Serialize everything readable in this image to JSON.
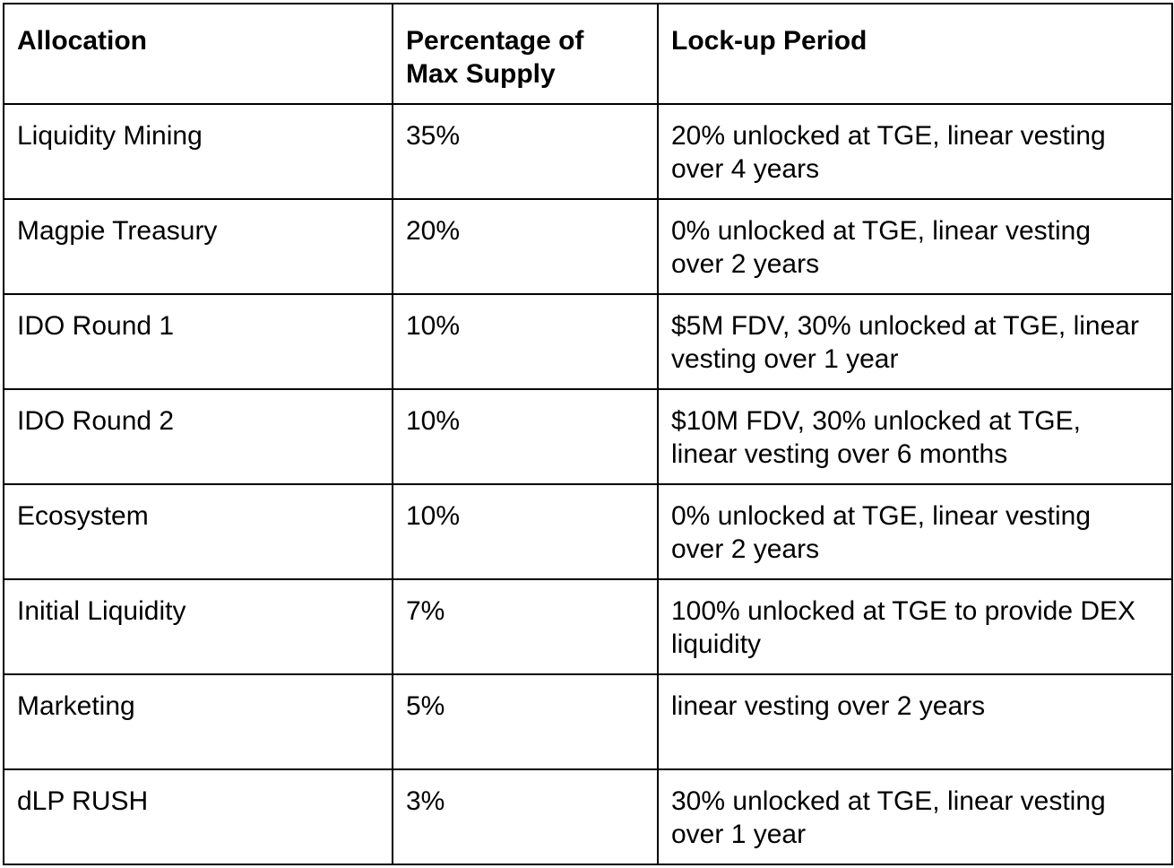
{
  "table": {
    "header": [
      "Allocation",
      "Percentage of Max Supply",
      "Lock-up Period"
    ],
    "rows": [
      [
        "Liquidity Mining",
        "35%",
        "20% unlocked at TGE, linear vesting over 4 years"
      ],
      [
        "Magpie Treasury",
        "20%",
        "0% unlocked at TGE, linear vesting over 2 years"
      ],
      [
        "IDO Round 1",
        "10%",
        "$5M FDV, 30% unlocked at TGE, linear vesting over 1 year"
      ],
      [
        "IDO Round 2",
        "10%",
        "$10M FDV, 30% unlocked at TGE, linear vesting over 6 months"
      ],
      [
        "Ecosystem",
        "10%",
        "0% unlocked at TGE, linear vesting over 2 years"
      ],
      [
        "Initial Liquidity",
        "7%",
        "100% unlocked at TGE to provide DEX liquidity"
      ],
      [
        "Marketing",
        "5%",
        "linear vesting over 2 years"
      ],
      [
        "dLP RUSH",
        "3%",
        "30% unlocked at TGE, linear vesting over 1 year"
      ]
    ]
  }
}
